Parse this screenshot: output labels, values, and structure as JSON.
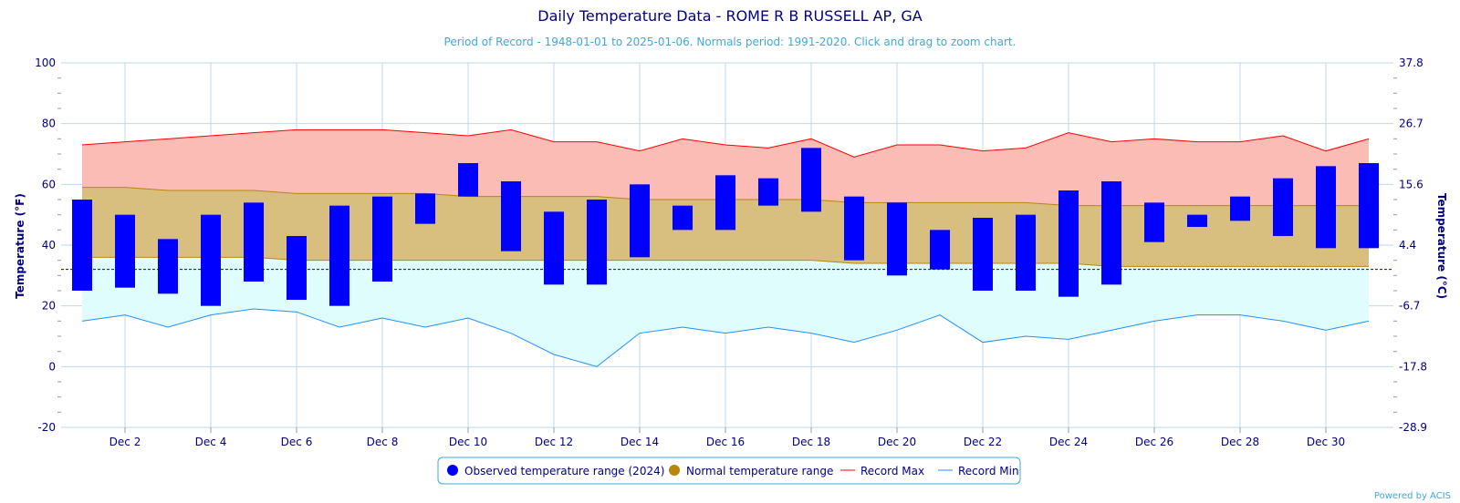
{
  "chart_data": {
    "type": "bar",
    "title": "Daily Temperature Data - ROME R B RUSSELL AP, GA",
    "subtitle": "Period of Record - 1948-01-01 to 2025-01-06. Normals period: 1991-2020. Click and drag to zoom chart.",
    "ylabel": "Temperature (°F)",
    "y2label": "Temperature (°C)",
    "ylim": [
      -20,
      100
    ],
    "yticks": [
      -20,
      0,
      20,
      40,
      60,
      80,
      100
    ],
    "y2ticks": [
      "-28.9",
      "-17.8",
      "-6.7",
      "4.4",
      "15.6",
      "26.7",
      "37.8"
    ],
    "x_tick_labels": [
      {
        "day": 2,
        "label": "Dec 2"
      },
      {
        "day": 4,
        "label": "Dec 4"
      },
      {
        "day": 6,
        "label": "Dec 6"
      },
      {
        "day": 8,
        "label": "Dec 8"
      },
      {
        "day": 10,
        "label": "Dec 10"
      },
      {
        "day": 12,
        "label": "Dec 12"
      },
      {
        "day": 14,
        "label": "Dec 14"
      },
      {
        "day": 16,
        "label": "Dec 16"
      },
      {
        "day": 18,
        "label": "Dec 18"
      },
      {
        "day": 20,
        "label": "Dec 20"
      },
      {
        "day": 22,
        "label": "Dec 22"
      },
      {
        "day": 24,
        "label": "Dec 24"
      },
      {
        "day": 26,
        "label": "Dec 26"
      },
      {
        "day": 28,
        "label": "Dec 28"
      },
      {
        "day": 30,
        "label": "Dec 30"
      }
    ],
    "freezing_line": 32,
    "days": [
      1,
      2,
      3,
      4,
      5,
      6,
      7,
      8,
      9,
      10,
      11,
      12,
      13,
      14,
      15,
      16,
      17,
      18,
      19,
      20,
      21,
      22,
      23,
      24,
      25,
      26,
      27,
      28,
      29,
      30,
      31
    ],
    "series": [
      {
        "name": "Observed temperature range (2024)",
        "color": "#0000ff",
        "low": [
          25,
          26,
          24,
          20,
          28,
          22,
          20,
          28,
          47,
          56,
          38,
          27,
          27,
          36,
          45,
          45,
          53,
          51,
          35,
          30,
          32,
          25,
          25,
          23,
          27,
          41,
          46,
          48,
          43,
          39,
          39
        ],
        "high": [
          55,
          50,
          42,
          50,
          54,
          43,
          53,
          56,
          57,
          67,
          61,
          51,
          55,
          60,
          53,
          63,
          62,
          72,
          56,
          54,
          45,
          49,
          50,
          58,
          61,
          54,
          50,
          56,
          62,
          66,
          67
        ]
      },
      {
        "name": "Normal temperature range",
        "color": "#b8860b",
        "low": [
          36,
          36,
          36,
          36,
          36,
          35,
          35,
          35,
          35,
          35,
          35,
          35,
          35,
          35,
          35,
          35,
          35,
          35,
          34,
          34,
          34,
          34,
          34,
          34,
          33,
          33,
          33,
          33,
          33,
          33,
          33
        ],
        "high": [
          59,
          59,
          58,
          58,
          58,
          57,
          57,
          57,
          57,
          56,
          56,
          56,
          56,
          55,
          55,
          55,
          55,
          55,
          54,
          54,
          54,
          54,
          54,
          53,
          53,
          53,
          53,
          53,
          53,
          53,
          53
        ]
      },
      {
        "name": "Record Max",
        "color": "#ff0000",
        "values": [
          73,
          74,
          75,
          76,
          77,
          78,
          78,
          78,
          77,
          76,
          78,
          74,
          74,
          71,
          75,
          73,
          72,
          75,
          69,
          73,
          73,
          71,
          72,
          77,
          74,
          75,
          74,
          74,
          76,
          71,
          75
        ]
      },
      {
        "name": "Record Min",
        "color": "#1e90ff",
        "values": [
          15,
          17,
          13,
          17,
          19,
          18,
          13,
          16,
          13,
          16,
          11,
          4,
          0,
          11,
          13,
          11,
          13,
          11,
          8,
          12,
          17,
          8,
          10,
          9,
          12,
          15,
          17,
          17,
          15,
          12,
          15
        ]
      }
    ],
    "legend": {
      "position": "bottom-center",
      "items": [
        {
          "label": "Observed temperature range (2024)",
          "marker": "circle",
          "color": "#0000ff"
        },
        {
          "label": "Normal temperature range",
          "marker": "circle",
          "color": "#b8860b"
        },
        {
          "label": "Record Max",
          "marker": "line",
          "color": "#ff0000"
        },
        {
          "label": "Record Min",
          "marker": "line",
          "color": "#1e90ff"
        }
      ]
    },
    "credit": "Powered by ACIS"
  }
}
